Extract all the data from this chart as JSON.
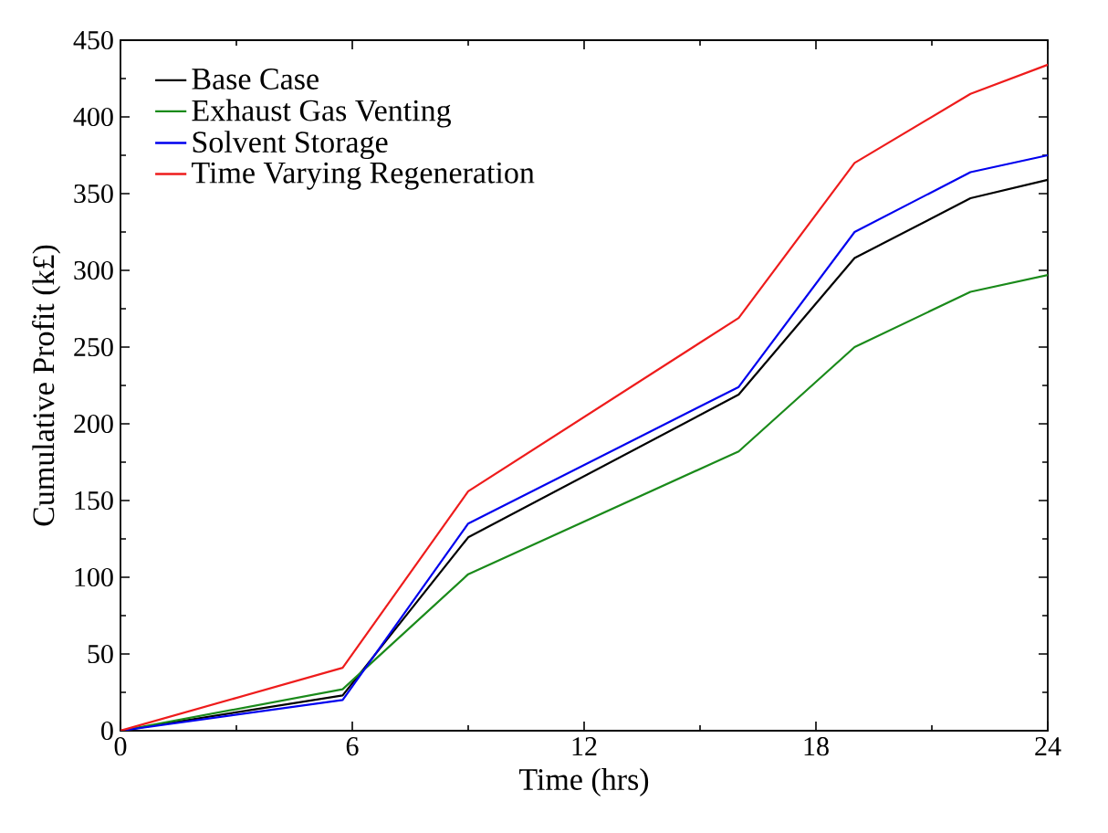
{
  "chart_data": {
    "type": "line",
    "xlabel": "Time (hrs)",
    "ylabel": "Cumulative Profit (k£)",
    "x": [
      0,
      5.75,
      9,
      16,
      19,
      22,
      24
    ],
    "series": [
      {
        "name": "Base Case",
        "color": "#000000",
        "values": [
          0,
          23,
          126,
          219,
          308,
          347,
          359
        ]
      },
      {
        "name": "Exhaust Gas Venting",
        "color": "#1a8a1a",
        "values": [
          0,
          27,
          102,
          182,
          250,
          286,
          297
        ]
      },
      {
        "name": "Solvent Storage",
        "color": "#0000ee",
        "values": [
          0,
          20,
          135,
          224,
          325,
          364,
          375
        ]
      },
      {
        "name": "Time Varying Regeneration",
        "color": "#ee1c1c",
        "values": [
          0,
          41,
          156,
          269,
          370,
          415,
          434
        ]
      }
    ],
    "xlim": [
      0,
      24
    ],
    "ylim": [
      0,
      450
    ],
    "xticks": [
      0,
      6,
      12,
      18,
      24
    ],
    "yticks": [
      0,
      50,
      100,
      150,
      200,
      250,
      300,
      350,
      400,
      450
    ],
    "grid": false,
    "legend": "top left",
    "marker": "none",
    "line_style": "solid"
  }
}
